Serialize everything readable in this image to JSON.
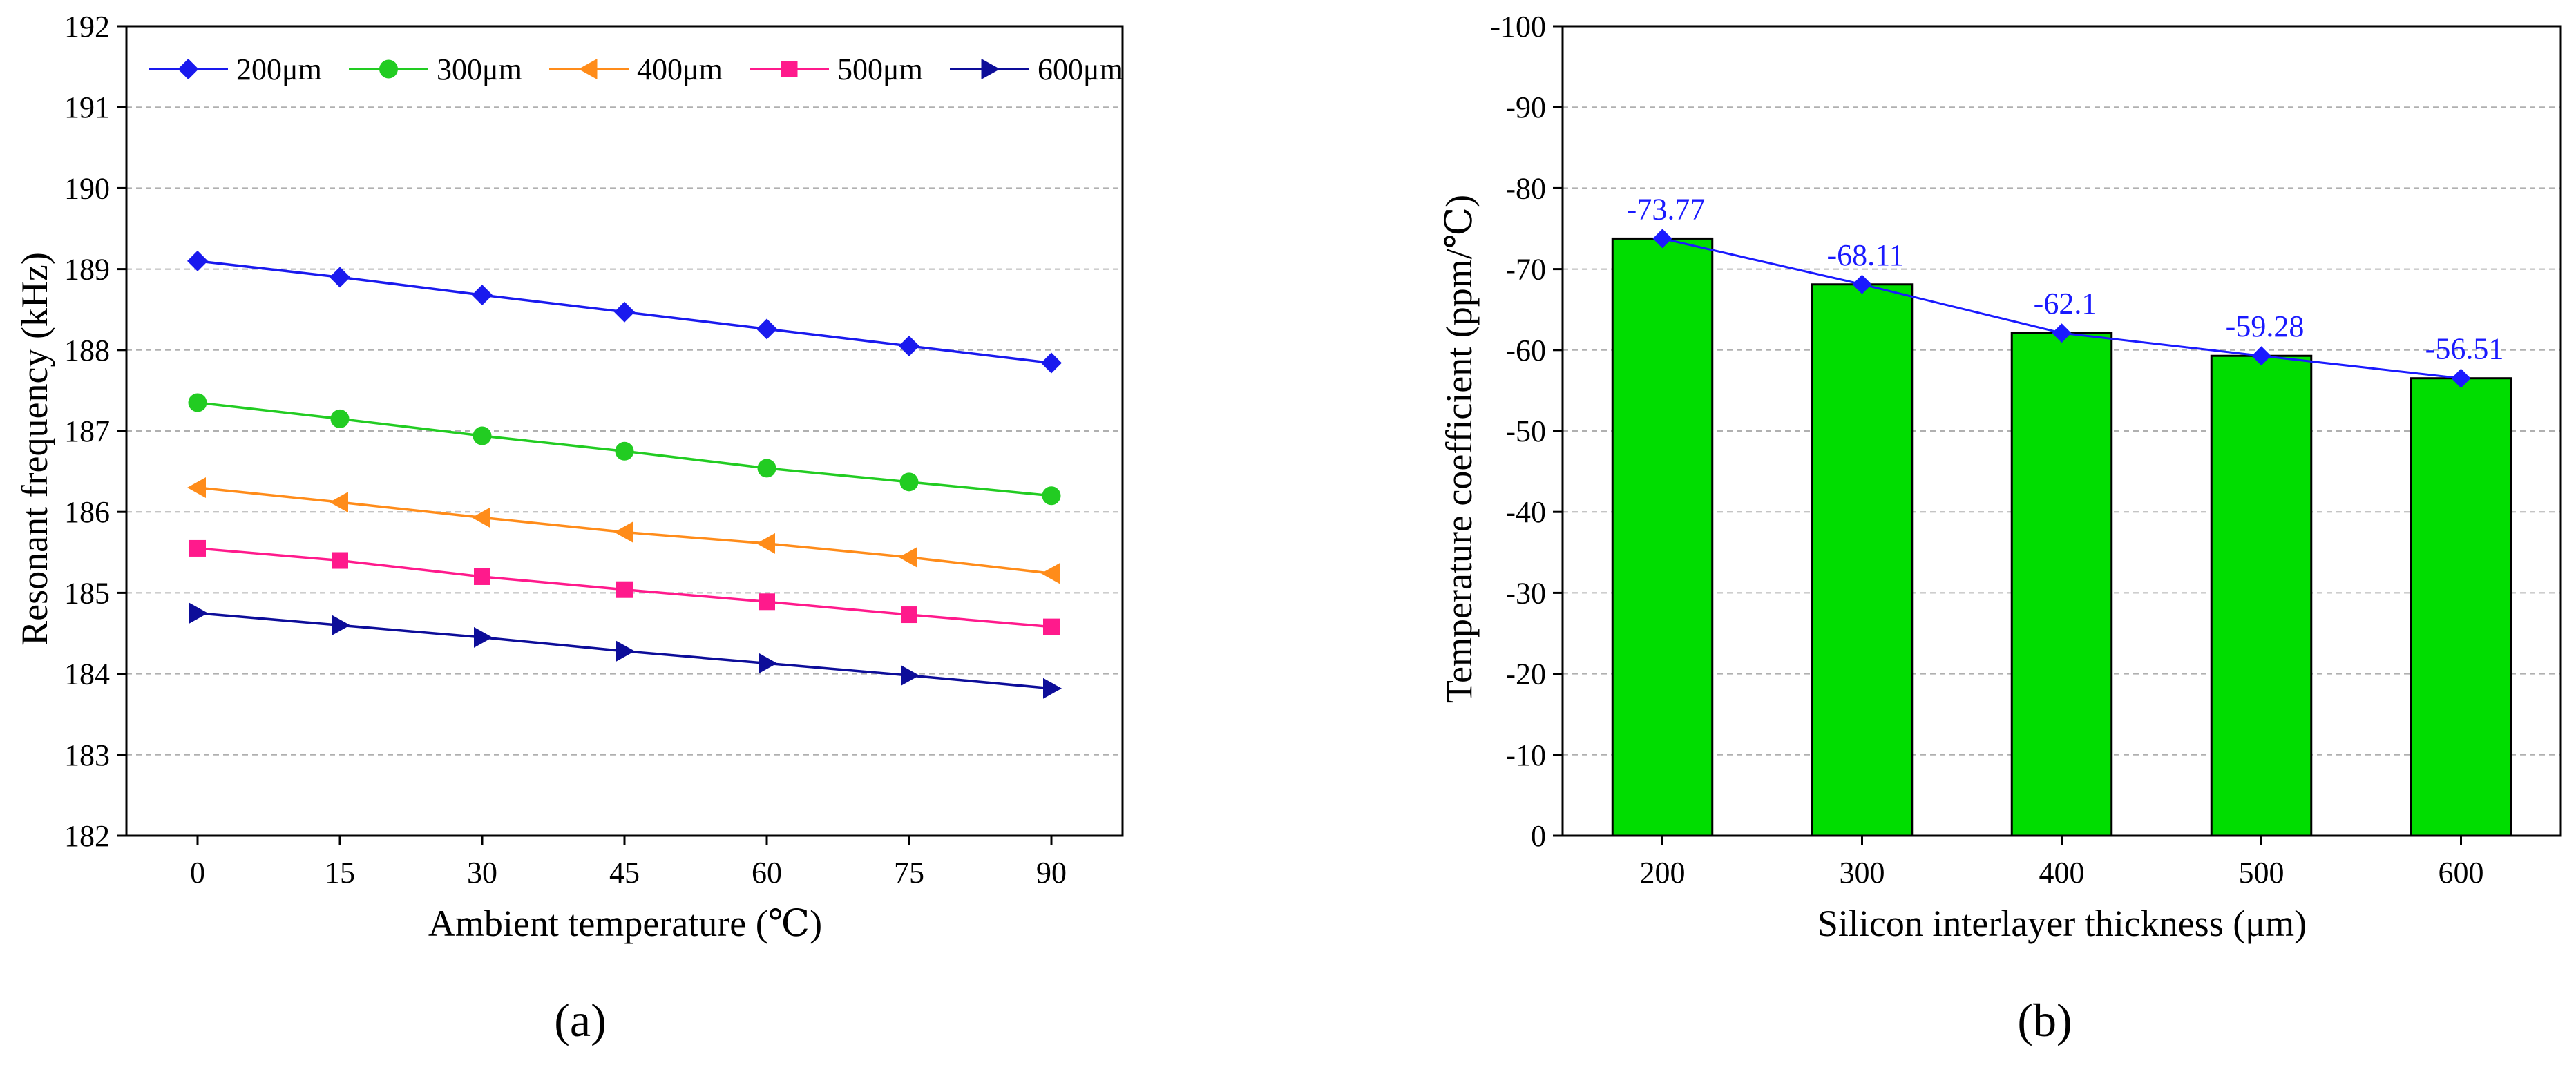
{
  "figure": {
    "panel_labels": [
      "(a)",
      "(b)"
    ]
  },
  "chart_data": [
    {
      "type": "line",
      "xlabel": "Ambient temperature (℃)",
      "ylabel": "Resonant frequency (kHz)",
      "x": [
        0,
        15,
        30,
        45,
        60,
        75,
        90
      ],
      "xlim": [
        -7.5,
        97.5
      ],
      "ylim": [
        182,
        192
      ],
      "yticks": [
        182,
        183,
        184,
        185,
        186,
        187,
        188,
        189,
        190,
        191,
        192
      ],
      "grid": true,
      "legend_position": "top",
      "series": [
        {
          "name": "200μm",
          "color": "#1a1aee",
          "marker": "diamond",
          "values": [
            189.1,
            188.9,
            188.68,
            188.47,
            188.26,
            188.05,
            187.84
          ]
        },
        {
          "name": "300μm",
          "color": "#22cc22",
          "marker": "circle",
          "values": [
            187.35,
            187.15,
            186.94,
            186.75,
            186.54,
            186.37,
            186.2
          ]
        },
        {
          "name": "400μm",
          "color": "#ff8c1a",
          "marker": "triangle-left",
          "values": [
            186.3,
            186.12,
            185.93,
            185.75,
            185.61,
            185.44,
            185.24
          ]
        },
        {
          "name": "500μm",
          "color": "#ff1a8c",
          "marker": "square",
          "values": [
            185.55,
            185.4,
            185.2,
            185.04,
            184.89,
            184.73,
            184.58
          ]
        },
        {
          "name": "600μm",
          "color": "#0d0d99",
          "marker": "triangle-right",
          "values": [
            184.75,
            184.6,
            184.45,
            184.28,
            184.13,
            183.98,
            183.82
          ]
        }
      ]
    },
    {
      "type": "bar",
      "xlabel": "Silicon interlayer thickness (μm)",
      "ylabel": "Temperature coefficient (ppm/℃)",
      "categories": [
        "200",
        "300",
        "400",
        "500",
        "600"
      ],
      "values": [
        -73.77,
        -68.11,
        -62.1,
        -59.28,
        -56.51
      ],
      "data_labels": [
        "-73.77",
        "-68.11",
        "-62.1",
        "-59.28",
        "-56.51"
      ],
      "ylim": [
        0,
        -100
      ],
      "yticks": [
        0,
        -10,
        -20,
        -30,
        -40,
        -50,
        -60,
        -70,
        -80,
        -90,
        -100
      ],
      "y_axis_inverted": true,
      "grid": true,
      "bar_color": "#00dd00",
      "line_color": "#1a1aff",
      "line_marker": "diamond"
    }
  ]
}
